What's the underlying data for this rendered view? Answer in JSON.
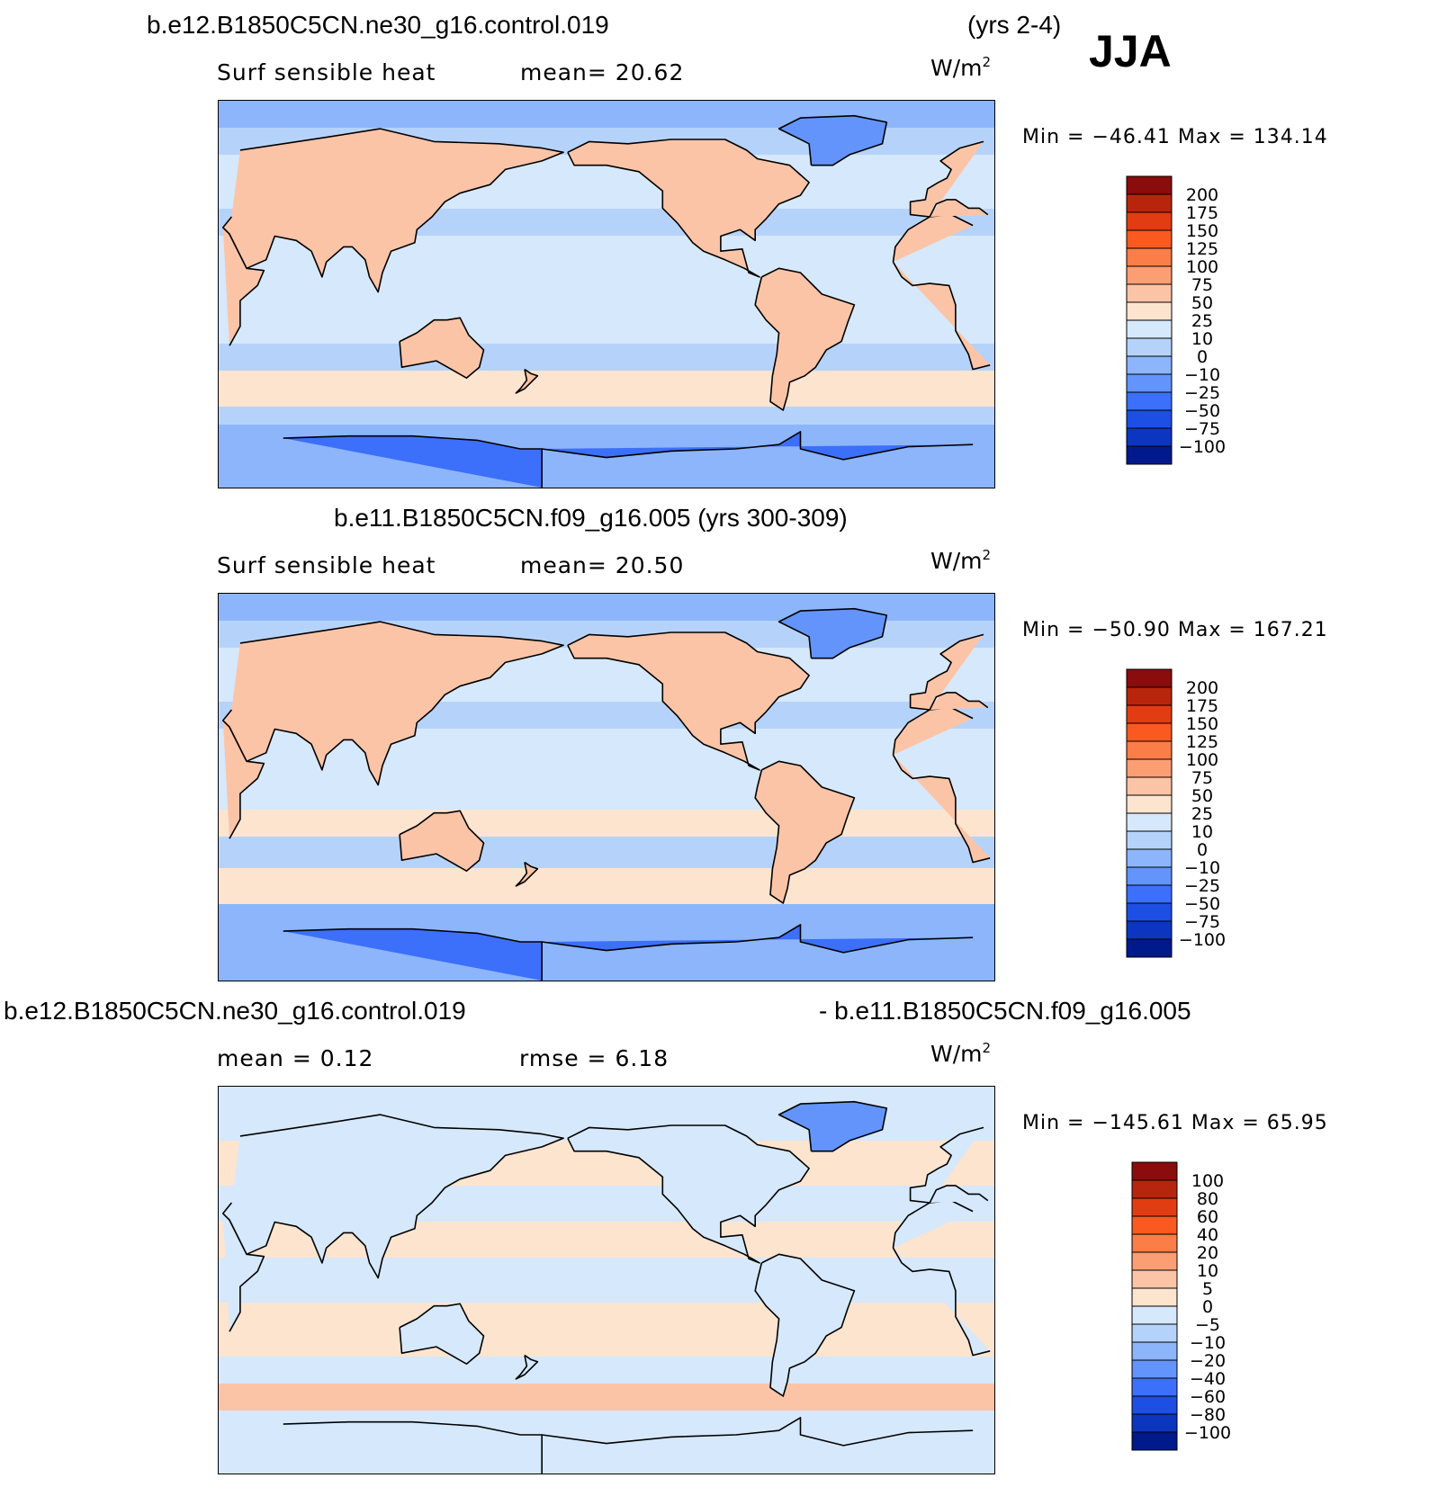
{
  "season": "JJA",
  "units_label": "W/m",
  "units_exp": "2",
  "panels": [
    {
      "title_left": "b.e12.B1850C5CN.ne30_g16.control.019",
      "title_right": "(yrs 2-4)",
      "variable": "Surf sensible heat",
      "stat1": "mean=   20.62",
      "minmax": "Min  =  −46.41  Max  =  134.14",
      "levels": [
        "200",
        "175",
        "150",
        "125",
        "100",
        "75",
        "50",
        "25",
        "10",
        "0",
        "−10",
        "−25",
        "−50",
        "−75",
        "−100"
      ],
      "colors": [
        "#8a0c0c",
        "#b8250d",
        "#e23c12",
        "#fa5a1f",
        "#fb7d47",
        "#fc9e74",
        "#fcc4a7",
        "#fde4cf",
        "#d6e8fb",
        "#b5d3fa",
        "#8cb5fb",
        "#6394fb",
        "#3c6ffa",
        "#1d4fe4",
        "#0c36bf",
        "#001a8c"
      ]
    },
    {
      "title_center": "b.e11.B1850C5CN.f09_g16.005 (yrs 300-309)",
      "variable": "Surf sensible heat",
      "stat1": "mean=   20.50",
      "minmax": "Min  =  −50.90  Max  =  167.21",
      "levels": [
        "200",
        "175",
        "150",
        "125",
        "100",
        "75",
        "50",
        "25",
        "10",
        "0",
        "−10",
        "−25",
        "−50",
        "−75",
        "−100"
      ],
      "colors": [
        "#8a0c0c",
        "#b8250d",
        "#e23c12",
        "#fa5a1f",
        "#fb7d47",
        "#fc9e74",
        "#fcc4a7",
        "#fde4cf",
        "#d6e8fb",
        "#b5d3fa",
        "#8cb5fb",
        "#6394fb",
        "#3c6ffa",
        "#1d4fe4",
        "#0c36bf",
        "#001a8c"
      ]
    },
    {
      "title_left": "b.e12.B1850C5CN.ne30_g16.control.019",
      "title_right": "- b.e11.B1850C5CN.f09_g16.005",
      "stat1": "mean =     0.12",
      "stat2": "rmse =     6.18",
      "minmax": "Min  =  −145.61  Max  =     65.95",
      "levels": [
        "100",
        "80",
        "60",
        "40",
        "20",
        "10",
        "5",
        "0",
        "−5",
        "−10",
        "−20",
        "−40",
        "−60",
        "−80",
        "−100"
      ],
      "colors": [
        "#8a0c0c",
        "#b8250d",
        "#e23c12",
        "#fa5a1f",
        "#fb7d47",
        "#fc9e74",
        "#fcc4a7",
        "#fde4cf",
        "#d6e8fb",
        "#b5d3fa",
        "#8cb5fb",
        "#6394fb",
        "#3c6ffa",
        "#1d4fe4",
        "#0c36bf",
        "#001a8c"
      ]
    }
  ]
}
